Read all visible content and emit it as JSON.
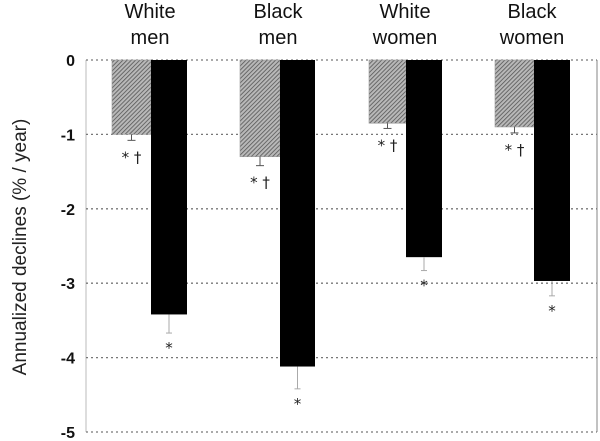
{
  "chart_data": {
    "type": "bar",
    "title": "",
    "xlabel": "",
    "ylabel": "Annualized declines (% / year)",
    "ylim": [
      -5,
      0
    ],
    "yticks": [
      "0",
      "-1",
      "-2",
      "-3",
      "-4",
      "-5"
    ],
    "grid": "dotted horizontal",
    "categories": [
      "White men",
      "Black men",
      "White women",
      "Black women"
    ],
    "category_lines": [
      [
        "White",
        "men"
      ],
      [
        "Black",
        "men"
      ],
      [
        "White",
        "women"
      ],
      [
        "Black",
        "women"
      ]
    ],
    "series": [
      {
        "name": "hatched (gray)",
        "values": [
          -1.0,
          -1.3,
          -0.85,
          -0.9
        ],
        "errors": [
          0.08,
          0.12,
          0.07,
          0.08
        ],
        "annotation": "* †"
      },
      {
        "name": "solid (black)",
        "values": [
          -3.42,
          -4.12,
          -2.65,
          -2.97
        ],
        "errors": [
          0.25,
          0.3,
          0.18,
          0.2
        ],
        "annotation": "*"
      }
    ]
  }
}
